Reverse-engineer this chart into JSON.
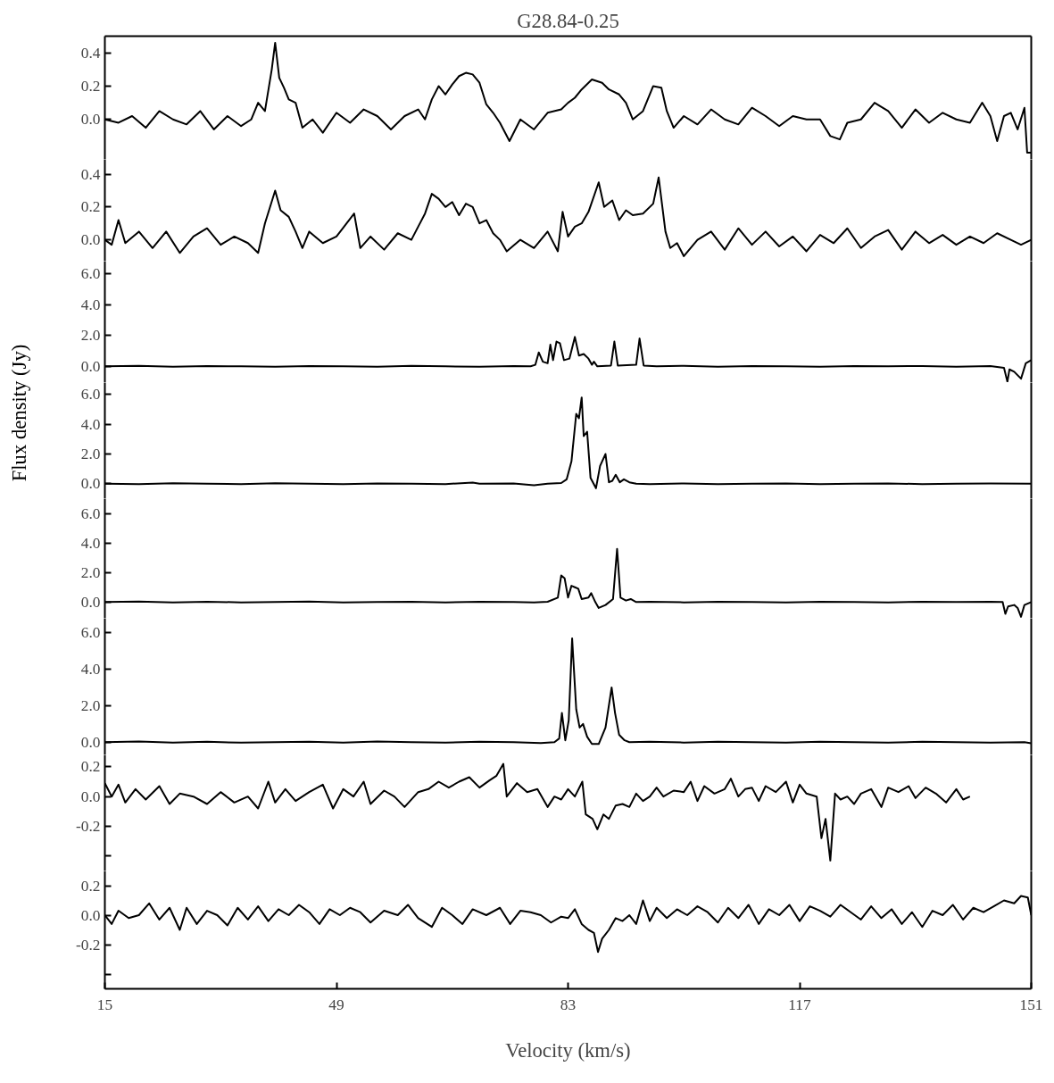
{
  "chart_data": [
    {
      "type": "line",
      "title": "G28.84-0.25",
      "xlim": [
        15,
        151
      ],
      "ylim": [
        -0.24,
        0.5
      ],
      "yticks": [
        {
          "value": 0,
          "label": "0.0"
        },
        0.2,
        0.4
      ],
      "tick_labels": "y",
      "series": [
        {
          "color": "#000000",
          "x": [
            15,
            17,
            19,
            21,
            23,
            25,
            27,
            29,
            31,
            33,
            35,
            36.5,
            37.5,
            38.5,
            39.5,
            40,
            40.6,
            41.3,
            42,
            43,
            44,
            45.5,
            47,
            49,
            51,
            53,
            55,
            57,
            59,
            61,
            62,
            63,
            64,
            65,
            66,
            67,
            68,
            69,
            70,
            71,
            72,
            73,
            74.4,
            76,
            78,
            80,
            82,
            83,
            84,
            85,
            86.5,
            88,
            89,
            90.5,
            91.5,
            92.5,
            94,
            95.5,
            96.7,
            97.5,
            98.5,
            100,
            102,
            104,
            106,
            108,
            110,
            112,
            114,
            116,
            118,
            120,
            121.5,
            122.9,
            124,
            126,
            128,
            130,
            132,
            134,
            136,
            138,
            140,
            142,
            143.8,
            145,
            146,
            147,
            148,
            149,
            150,
            150.4,
            151
          ],
          "values": [
            0.0,
            -0.02,
            0.02,
            -0.05,
            0.05,
            0.0,
            -0.03,
            0.05,
            -0.06,
            0.02,
            -0.04,
            0.0,
            0.1,
            0.05,
            0.3,
            0.46,
            0.25,
            0.19,
            0.12,
            0.1,
            -0.05,
            0.0,
            -0.08,
            0.04,
            -0.02,
            0.06,
            0.02,
            -0.06,
            0.02,
            0.06,
            0.0,
            0.12,
            0.2,
            0.15,
            0.21,
            0.26,
            0.28,
            0.27,
            0.22,
            0.09,
            0.04,
            -0.02,
            -0.13,
            0.0,
            -0.06,
            0.04,
            0.06,
            0.1,
            0.13,
            0.18,
            0.24,
            0.22,
            0.18,
            0.15,
            0.1,
            0.0,
            0.05,
            0.2,
            0.19,
            0.05,
            -0.05,
            0.02,
            -0.03,
            0.06,
            0.0,
            -0.03,
            0.07,
            0.02,
            -0.04,
            0.02,
            0.0,
            0.0,
            -0.1,
            -0.12,
            -0.02,
            0.0,
            0.1,
            0.05,
            -0.05,
            0.06,
            -0.02,
            0.04,
            0.0,
            -0.02,
            0.1,
            0.02,
            -0.13,
            0.02,
            0.04,
            -0.06,
            0.07,
            -0.2,
            -0.2
          ]
        }
      ]
    },
    {
      "type": "line",
      "xlim": [
        15,
        151
      ],
      "ylim": [
        -0.13,
        0.49
      ],
      "yticks": [
        {
          "value": 0,
          "label": "0.0"
        },
        0.2,
        0.4
      ],
      "tick_labels": "y",
      "series": [
        {
          "color": "#000000",
          "x": [
            15,
            16,
            17,
            18,
            20,
            22,
            24,
            26,
            28,
            30,
            32,
            34,
            36,
            37.5,
            38.5,
            40,
            40.8,
            42,
            43,
            44,
            45,
            47,
            49,
            51.6,
            52.5,
            54,
            56,
            58,
            60,
            61,
            62,
            63,
            64,
            65,
            66,
            67,
            68,
            69,
            70,
            71,
            72,
            73,
            74,
            76,
            78,
            80,
            81.5,
            82.2,
            83,
            84,
            85,
            86,
            87.5,
            88.3,
            89.5,
            90.5,
            91.5,
            92.5,
            94,
            95.5,
            96.3,
            97.3,
            98,
            99,
            100,
            102,
            104,
            106,
            108,
            110,
            112,
            114,
            116,
            118,
            120,
            122,
            124,
            126,
            128,
            130,
            132,
            134,
            136,
            138,
            140,
            142,
            144,
            146,
            148,
            149.5,
            151
          ],
          "values": [
            0.0,
            -0.03,
            0.12,
            -0.02,
            0.05,
            -0.05,
            0.05,
            -0.08,
            0.02,
            0.07,
            -0.03,
            0.02,
            -0.02,
            -0.08,
            0.1,
            0.3,
            0.18,
            0.14,
            0.05,
            -0.05,
            0.05,
            -0.02,
            0.02,
            0.16,
            -0.05,
            0.02,
            -0.06,
            0.04,
            0.0,
            0.08,
            0.16,
            0.28,
            0.25,
            0.2,
            0.23,
            0.15,
            0.22,
            0.2,
            0.1,
            0.12,
            0.04,
            0.0,
            -0.07,
            0.0,
            -0.05,
            0.05,
            -0.07,
            0.17,
            0.02,
            0.08,
            0.1,
            0.17,
            0.35,
            0.2,
            0.24,
            0.12,
            0.18,
            0.15,
            0.16,
            0.22,
            0.38,
            0.05,
            -0.05,
            -0.02,
            -0.1,
            0.0,
            0.05,
            -0.06,
            0.07,
            -0.03,
            0.05,
            -0.04,
            0.02,
            -0.07,
            0.03,
            -0.02,
            0.07,
            -0.05,
            0.02,
            0.06,
            -0.06,
            0.05,
            -0.02,
            0.03,
            -0.03,
            0.02,
            -0.02,
            0.04,
            0.0,
            -0.03,
            0.0
          ]
        }
      ]
    },
    {
      "type": "line",
      "xlim": [
        15,
        151
      ],
      "ylim": [
        -1.05,
        6.8
      ],
      "yticks": [
        {
          "value": 0,
          "label": "0.0"
        },
        {
          "value": 2,
          "label": "2.0"
        },
        {
          "value": 4,
          "label": "4.0"
        },
        {
          "value": 6,
          "label": "6.0"
        }
      ],
      "tick_labels": "y",
      "series": [
        {
          "color": "#000000",
          "x": [
            15,
            20,
            25,
            30,
            35,
            40,
            45,
            50,
            55,
            60,
            65,
            70,
            75,
            77.5,
            78.2,
            78.7,
            79.3,
            80,
            80.4,
            80.8,
            81.3,
            81.8,
            82.4,
            83.2,
            84,
            84.6,
            85.3,
            86,
            86.5,
            86.8,
            87.3,
            89.3,
            89.8,
            90.3,
            93,
            93.5,
            94.1,
            96,
            100,
            105,
            110,
            115,
            120,
            125,
            130,
            135,
            140,
            145,
            147,
            147.5,
            147.8,
            148.5,
            149.5,
            150.2,
            151
          ],
          "values": [
            0,
            0.03,
            -0.03,
            0.02,
            0,
            -0.02,
            0.02,
            0,
            -0.02,
            0.03,
            0,
            -0.02,
            0.02,
            0,
            0.1,
            0.9,
            0.3,
            0.2,
            1.4,
            0.4,
            1.6,
            1.5,
            0.4,
            0.5,
            1.9,
            0.7,
            0.8,
            0.5,
            0.1,
            0.3,
            0,
            0.05,
            1.6,
            0.05,
            0.1,
            1.8,
            0.05,
            0,
            0.03,
            -0.02,
            0.02,
            0,
            -0.03,
            0.02,
            0,
            0.02,
            -0.02,
            0.02,
            -0.1,
            -1.0,
            -0.2,
            -0.35,
            -0.8,
            0.2,
            0.4
          ]
        }
      ]
    },
    {
      "type": "line",
      "xlim": [
        15,
        151
      ],
      "ylim": [
        -1.0,
        6.8
      ],
      "yticks": [
        {
          "value": 0,
          "label": "0.0"
        },
        {
          "value": 2,
          "label": "2.0"
        },
        {
          "value": 4,
          "label": "4.0"
        },
        {
          "value": 6,
          "label": "6.0"
        }
      ],
      "tick_labels": "y",
      "ylabel": "Flux density (Jy)",
      "series": [
        {
          "color": "#000000",
          "x": [
            15,
            20,
            25,
            30,
            35,
            40,
            45,
            50,
            55,
            60,
            65,
            69,
            70,
            75,
            78,
            80,
            82,
            82.8,
            83.5,
            84.2,
            84.6,
            85,
            85.3,
            85.8,
            86.3,
            87.1,
            87.7,
            88.5,
            89,
            89.5,
            90,
            90.6,
            91.2,
            92,
            93,
            95,
            100,
            105,
            110,
            115,
            120,
            125,
            130,
            135,
            140,
            145,
            151
          ],
          "values": [
            0,
            -0.03,
            0.03,
            0,
            -0.02,
            0.03,
            0,
            -0.03,
            0.02,
            0,
            -0.02,
            0.08,
            0.0,
            0.02,
            -0.1,
            0,
            0.05,
            0.3,
            1.5,
            4.7,
            4.4,
            5.8,
            3.2,
            3.5,
            0.4,
            -0.3,
            1.2,
            2.0,
            0.1,
            0.2,
            0.6,
            0.1,
            0.3,
            0.1,
            0.0,
            -0.03,
            0.02,
            -0.02,
            0,
            0.02,
            -0.02,
            0,
            0.02,
            -0.02,
            0,
            0.02,
            0
          ]
        }
      ]
    },
    {
      "type": "line",
      "xlim": [
        15,
        151
      ],
      "ylim": [
        -1.1,
        7.0
      ],
      "yticks": [
        {
          "value": 0,
          "label": "0.0"
        },
        {
          "value": 2,
          "label": "2.0"
        },
        {
          "value": 4,
          "label": "4.0"
        },
        {
          "value": 6,
          "label": "6.0"
        }
      ],
      "tick_labels": "y",
      "series": [
        {
          "color": "#000000",
          "x": [
            15,
            20,
            25,
            30,
            35,
            40,
            45,
            50,
            55,
            60,
            65,
            70,
            75,
            78,
            80,
            81.5,
            82,
            82.5,
            83,
            83.5,
            84,
            84.5,
            85,
            86,
            86.4,
            87,
            87.5,
            88.5,
            89.6,
            90.2,
            90.7,
            91.5,
            92.2,
            93,
            95,
            100,
            105,
            110,
            115,
            120,
            125,
            130,
            135,
            140,
            145,
            146.8,
            147.2,
            147.6,
            148.5,
            149,
            149.5,
            150,
            151
          ],
          "values": [
            0,
            0.03,
            -0.02,
            0.02,
            -0.02,
            0,
            0.03,
            -0.02,
            0,
            0.02,
            -0.03,
            0.02,
            0,
            -0.03,
            0.02,
            0.3,
            1.8,
            1.6,
            0.3,
            1.1,
            1.0,
            0.9,
            0.2,
            0.3,
            0.6,
            0,
            -0.4,
            -0.2,
            0.2,
            3.6,
            0.3,
            0.1,
            0.2,
            0,
            0.02,
            -0.02,
            0.02,
            0,
            -0.02,
            0.02,
            0,
            -0.02,
            0.02,
            0,
            0.02,
            0,
            -0.8,
            -0.3,
            -0.2,
            -0.4,
            -1.0,
            -0.2,
            0
          ]
        }
      ]
    },
    {
      "type": "line",
      "xlim": [
        15,
        151
      ],
      "ylim": [
        -0.7,
        6.8
      ],
      "yticks": [
        {
          "value": 0,
          "label": "0.0"
        },
        {
          "value": 2,
          "label": "2.0"
        },
        {
          "value": 4,
          "label": "4.0"
        },
        {
          "value": 6,
          "label": "6.0"
        }
      ],
      "tick_labels": "y",
      "series": [
        {
          "color": "#000000",
          "x": [
            15,
            20,
            25,
            30,
            35,
            40,
            45,
            50,
            55,
            60,
            65,
            70,
            75,
            79,
            81,
            81.7,
            82.1,
            82.6,
            83.1,
            83.6,
            84.2,
            84.7,
            85.2,
            85.8,
            86.5,
            87.5,
            88.5,
            89.4,
            89.9,
            90.5,
            91.3,
            92,
            95,
            100,
            105,
            110,
            115,
            120,
            125,
            130,
            135,
            140,
            145,
            150,
            151
          ],
          "values": [
            0,
            0.03,
            -0.02,
            0.02,
            -0.03,
            0,
            0.02,
            -0.02,
            0.03,
            0,
            -0.02,
            0.02,
            0,
            -0.05,
            0,
            0.2,
            1.6,
            0.1,
            1.2,
            5.7,
            1.8,
            0.8,
            1.0,
            0.3,
            -0.1,
            -0.1,
            0.8,
            3.0,
            1.6,
            0.4,
            0.1,
            0,
            0.02,
            -0.02,
            0.02,
            0,
            -0.03,
            0.02,
            0,
            -0.02,
            0.02,
            0,
            -0.02,
            0,
            -0.06
          ]
        }
      ]
    },
    {
      "type": "line",
      "xlim": [
        15,
        151
      ],
      "ylim": [
        -0.5,
        0.28
      ],
      "yticks": [
        {
          "value": -0.4,
          "label": null
        },
        -0.2,
        {
          "value": 0,
          "label": "0.0"
        },
        0.2
      ],
      "tick_labels": "y",
      "series": [
        {
          "color": "#000000",
          "x": [
            15,
            16,
            17,
            18,
            19.5,
            21,
            23,
            24.5,
            26,
            28,
            30,
            32,
            34,
            36,
            37.5,
            39,
            40,
            41.5,
            43,
            45,
            47,
            48.5,
            50,
            51.5,
            53,
            54,
            56,
            57.5,
            59,
            61,
            62.5,
            64,
            65.5,
            67,
            68.5,
            70,
            71.5,
            72.5,
            73.5,
            74,
            75.5,
            77,
            78.5,
            80,
            81,
            82,
            83,
            84,
            85.1,
            85.6,
            86.6,
            87.3,
            88.2,
            89,
            90,
            91,
            92,
            93,
            94,
            95,
            96,
            97,
            98.5,
            100,
            101,
            102,
            103,
            104.5,
            106,
            106.9,
            108,
            109,
            110,
            111,
            112,
            113.5,
            115,
            116,
            117,
            118,
            119.5,
            120.2,
            120.8,
            121.5,
            122.2,
            123,
            124,
            125,
            126,
            127.5,
            129,
            130,
            131.5,
            133,
            134,
            135.5,
            137,
            138.5,
            140,
            141,
            142
          ],
          "values": [
            0.09,
            0.0,
            0.08,
            -0.04,
            0.05,
            -0.02,
            0.07,
            -0.05,
            0.02,
            0.0,
            -0.05,
            0.03,
            -0.04,
            0.0,
            -0.08,
            0.1,
            -0.04,
            0.05,
            -0.03,
            0.03,
            0.08,
            -0.08,
            0.05,
            0.0,
            0.1,
            -0.05,
            0.04,
            0.0,
            -0.07,
            0.03,
            0.05,
            0.1,
            0.06,
            0.1,
            0.13,
            0.06,
            0.11,
            0.14,
            0.22,
            0.0,
            0.09,
            0.03,
            0.05,
            -0.07,
            0.0,
            -0.02,
            0.05,
            0.0,
            0.1,
            -0.12,
            -0.15,
            -0.22,
            -0.12,
            -0.15,
            -0.06,
            -0.05,
            -0.07,
            0.02,
            -0.03,
            0.0,
            0.06,
            0.0,
            0.04,
            0.03,
            0.1,
            -0.03,
            0.07,
            0.02,
            0.05,
            0.12,
            0.0,
            0.05,
            0.06,
            -0.03,
            0.07,
            0.03,
            0.1,
            -0.04,
            0.08,
            0.02,
            0.0,
            -0.28,
            -0.15,
            -0.43,
            0.02,
            -0.02,
            0.0,
            -0.05,
            0.02,
            0.05,
            -0.07,
            0.06,
            0.03,
            0.07,
            -0.01,
            0.06,
            0.02,
            -0.04,
            0.05,
            -0.02,
            0.0
          ]
        }
      ]
    },
    {
      "type": "line",
      "xlabel": "Velocity (km/s)",
      "xlim": [
        15,
        151
      ],
      "xticks": [
        15,
        49,
        83,
        117,
        151
      ],
      "ylim": [
        -0.5,
        0.3
      ],
      "yticks": [
        {
          "value": -0.4,
          "label": null
        },
        -0.2,
        {
          "value": 0,
          "label": "0.0"
        },
        0.2
      ],
      "series": [
        {
          "color": "#000000",
          "x": [
            15,
            16,
            17,
            18.5,
            20,
            21.5,
            23,
            24.5,
            26,
            27,
            28.5,
            30,
            31.5,
            33,
            34.5,
            36,
            37.5,
            39,
            40.5,
            42,
            43.5,
            45,
            46.5,
            48,
            49.5,
            51,
            52.5,
            54,
            56,
            58,
            59.5,
            61,
            63,
            64.5,
            66,
            67.5,
            69,
            71,
            73,
            74.5,
            76,
            77.5,
            79,
            80.5,
            82,
            83,
            84,
            85,
            86,
            86.8,
            87.4,
            88,
            89,
            90,
            91,
            92,
            93,
            94,
            95,
            96,
            97.5,
            99,
            100.5,
            102,
            103.5,
            105,
            106.5,
            108,
            109.5,
            111,
            112.5,
            114,
            115.5,
            117,
            118.5,
            120,
            121.5,
            123,
            124.5,
            126,
            127.5,
            129,
            130.5,
            132,
            133.5,
            135,
            136.5,
            138,
            139.5,
            141,
            142.5,
            144,
            145.5,
            147,
            148.5,
            149.5,
            150.5,
            151
          ],
          "values": [
            0.0,
            -0.06,
            0.03,
            -0.02,
            0.0,
            0.08,
            -0.03,
            0.05,
            -0.1,
            0.05,
            -0.06,
            0.03,
            0.0,
            -0.07,
            0.05,
            -0.03,
            0.06,
            -0.04,
            0.04,
            0.0,
            0.07,
            0.02,
            -0.06,
            0.04,
            0.0,
            0.05,
            0.02,
            -0.05,
            0.03,
            0.0,
            0.07,
            -0.02,
            -0.08,
            0.05,
            0.0,
            -0.06,
            0.04,
            0.0,
            0.05,
            -0.06,
            0.03,
            0.02,
            0.0,
            -0.05,
            -0.01,
            -0.02,
            0.04,
            -0.06,
            -0.1,
            -0.12,
            -0.25,
            -0.16,
            -0.1,
            -0.02,
            -0.04,
            0.0,
            -0.06,
            0.1,
            -0.04,
            0.05,
            -0.02,
            0.04,
            0.0,
            0.06,
            0.02,
            -0.05,
            0.05,
            -0.02,
            0.07,
            -0.06,
            0.04,
            0.0,
            0.07,
            -0.04,
            0.06,
            0.03,
            -0.01,
            0.07,
            0.02,
            -0.03,
            0.06,
            -0.02,
            0.04,
            -0.06,
            0.02,
            -0.08,
            0.03,
            0.0,
            0.07,
            -0.03,
            0.05,
            0.02,
            0.06,
            0.1,
            0.08,
            0.13,
            0.12,
            0.0
          ]
        }
      ]
    }
  ]
}
